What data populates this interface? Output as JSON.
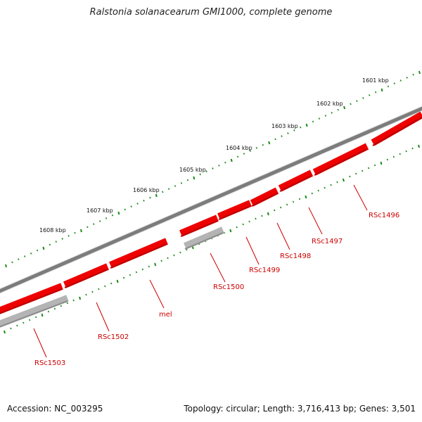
{
  "title": "Ralstonia solanacearum GMI1000, complete genome",
  "footer": {
    "accession": "Accession: NC_003295",
    "summary": "Topology: circular; Length: 3,716,413 bp; Genes: 3,501"
  },
  "colors": {
    "backbone": "#808080",
    "gene_forward": "#ee0000",
    "gene_reverse": "#b4b4b4",
    "ticks": "#1a8a1a",
    "label": "#cc0000"
  },
  "scale_labels": [
    "1601 kbp",
    "1602 kbp",
    "1603 kbp",
    "1604 kbp",
    "1605 kbp",
    "1606 kbp",
    "1607 kbp",
    "1608 kbp"
  ],
  "genes": [
    {
      "label": "RSc1496",
      "color": "red"
    },
    {
      "label": "RSc1497",
      "color": "red"
    },
    {
      "label": "RSc1498",
      "color": "red"
    },
    {
      "label": "RSc1499",
      "color": "red"
    },
    {
      "label": "RSc1500",
      "color": "gray"
    },
    {
      "label": "mel",
      "color": "red"
    },
    {
      "label": "RSc1502",
      "color": "red"
    },
    {
      "label": "RSc1503",
      "color": "gray"
    }
  ]
}
